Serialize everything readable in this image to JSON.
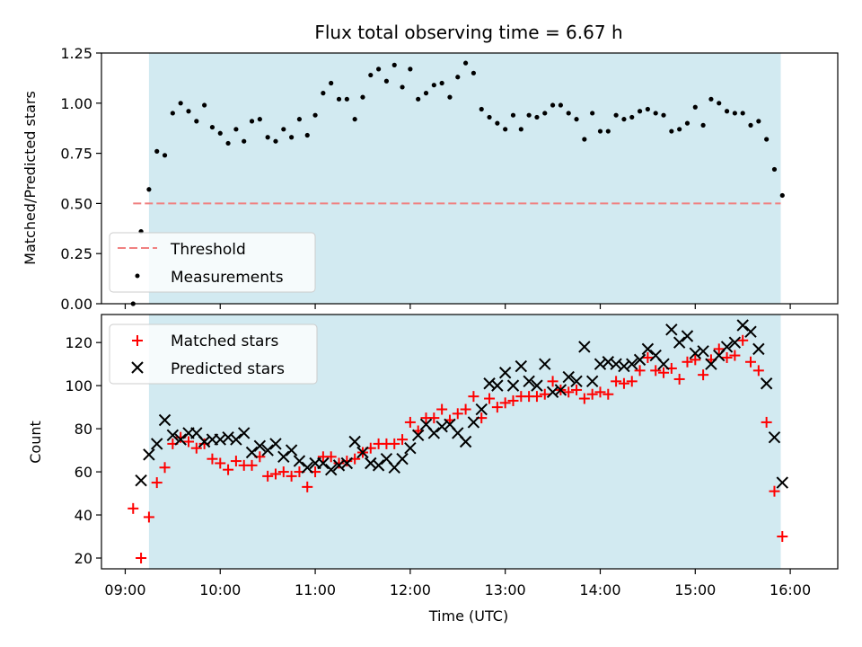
{
  "chart_data": [
    {
      "type": "scatter",
      "panel": "top",
      "title": "Flux total observing time = 6.67 h",
      "ylabel": "Matched/Predicted stars",
      "xlabel": "",
      "ylim": [
        0,
        1.25
      ],
      "yticks": [
        "0.00",
        "0.25",
        "0.50",
        "0.75",
        "1.00",
        "1.25"
      ],
      "ytick_values": [
        0,
        0.25,
        0.5,
        0.75,
        1.0,
        1.25
      ],
      "observing_window": {
        "start": "09:15",
        "end": "15:54",
        "color": "#add8e6"
      },
      "threshold": {
        "name": "Threshold",
        "value": 0.5,
        "x_start": "09:05",
        "x_end": "15:54",
        "color": "#f08080"
      },
      "legend": {
        "position": "lower-left",
        "entries": [
          "Threshold",
          "Measurements"
        ]
      },
      "series": [
        {
          "name": "Measurements",
          "marker": "dot",
          "color": "#000000",
          "points": [
            [
              "09:05",
              0.0
            ],
            [
              "09:10",
              0.36
            ],
            [
              "09:15",
              0.57
            ],
            [
              "09:20",
              0.76
            ],
            [
              "09:25",
              0.74
            ],
            [
              "09:30",
              0.95
            ],
            [
              "09:35",
              1.0
            ],
            [
              "09:40",
              0.96
            ],
            [
              "09:45",
              0.91
            ],
            [
              "09:50",
              0.99
            ],
            [
              "09:55",
              0.88
            ],
            [
              "10:00",
              0.85
            ],
            [
              "10:05",
              0.8
            ],
            [
              "10:10",
              0.87
            ],
            [
              "10:15",
              0.81
            ],
            [
              "10:20",
              0.91
            ],
            [
              "10:25",
              0.92
            ],
            [
              "10:30",
              0.83
            ],
            [
              "10:35",
              0.81
            ],
            [
              "10:40",
              0.87
            ],
            [
              "10:45",
              0.83
            ],
            [
              "10:50",
              0.92
            ],
            [
              "10:55",
              0.84
            ],
            [
              "11:00",
              0.94
            ],
            [
              "11:05",
              1.05
            ],
            [
              "11:10",
              1.1
            ],
            [
              "11:15",
              1.02
            ],
            [
              "11:20",
              1.02
            ],
            [
              "11:25",
              0.92
            ],
            [
              "11:30",
              1.03
            ],
            [
              "11:35",
              1.14
            ],
            [
              "11:40",
              1.17
            ],
            [
              "11:45",
              1.11
            ],
            [
              "11:50",
              1.19
            ],
            [
              "11:55",
              1.08
            ],
            [
              "12:00",
              1.17
            ],
            [
              "12:05",
              1.02
            ],
            [
              "12:10",
              1.05
            ],
            [
              "12:15",
              1.09
            ],
            [
              "12:20",
              1.1
            ],
            [
              "12:25",
              1.03
            ],
            [
              "12:30",
              1.13
            ],
            [
              "12:35",
              1.2
            ],
            [
              "12:40",
              1.15
            ],
            [
              "12:45",
              0.97
            ],
            [
              "12:50",
              0.93
            ],
            [
              "12:55",
              0.9
            ],
            [
              "13:00",
              0.87
            ],
            [
              "13:05",
              0.94
            ],
            [
              "13:10",
              0.87
            ],
            [
              "13:15",
              0.94
            ],
            [
              "13:20",
              0.93
            ],
            [
              "13:25",
              0.95
            ],
            [
              "13:30",
              0.99
            ],
            [
              "13:35",
              0.99
            ],
            [
              "13:40",
              0.95
            ],
            [
              "13:45",
              0.92
            ],
            [
              "13:50",
              0.82
            ],
            [
              "13:55",
              0.95
            ],
            [
              "14:00",
              0.86
            ],
            [
              "14:05",
              0.86
            ],
            [
              "14:10",
              0.94
            ],
            [
              "14:15",
              0.92
            ],
            [
              "14:20",
              0.93
            ],
            [
              "14:25",
              0.96
            ],
            [
              "14:30",
              0.97
            ],
            [
              "14:35",
              0.95
            ],
            [
              "14:40",
              0.94
            ],
            [
              "14:45",
              0.86
            ],
            [
              "14:50",
              0.87
            ],
            [
              "14:55",
              0.9
            ],
            [
              "15:00",
              0.98
            ],
            [
              "15:05",
              0.89
            ],
            [
              "15:10",
              1.02
            ],
            [
              "15:15",
              1.0
            ],
            [
              "15:20",
              0.96
            ],
            [
              "15:25",
              0.95
            ],
            [
              "15:30",
              0.95
            ],
            [
              "15:35",
              0.89
            ],
            [
              "15:40",
              0.91
            ],
            [
              "15:45",
              0.82
            ],
            [
              "15:50",
              0.67
            ],
            [
              "15:55",
              0.54
            ]
          ]
        }
      ]
    },
    {
      "type": "scatter",
      "panel": "bottom",
      "title": "",
      "ylabel": "Count",
      "xlabel": "Time (UTC)",
      "ylim": [
        15,
        133
      ],
      "yticks": [
        "20",
        "40",
        "60",
        "80",
        "100",
        "120"
      ],
      "ytick_values": [
        20,
        40,
        60,
        80,
        100,
        120
      ],
      "xlim": [
        "08:45",
        "16:30"
      ],
      "xticks": [
        "09:00",
        "10:00",
        "11:00",
        "12:00",
        "13:00",
        "14:00",
        "15:00",
        "16:00"
      ],
      "observing_window": {
        "start": "09:15",
        "end": "15:54",
        "color": "#add8e6"
      },
      "legend": {
        "position": "top-left",
        "entries": [
          "Matched stars",
          "Predicted stars"
        ]
      },
      "series": [
        {
          "name": "Matched stars",
          "marker": "plus",
          "color": "#ff0000",
          "points": [
            [
              "09:05",
              43
            ],
            [
              "09:10",
              20
            ],
            [
              "09:15",
              39
            ],
            [
              "09:20",
              55
            ],
            [
              "09:25",
              62
            ],
            [
              "09:30",
              73
            ],
            [
              "09:35",
              76
            ],
            [
              "09:40",
              74
            ],
            [
              "09:45",
              71
            ],
            [
              "09:50",
              73
            ],
            [
              "09:55",
              66
            ],
            [
              "10:00",
              64
            ],
            [
              "10:05",
              61
            ],
            [
              "10:10",
              65
            ],
            [
              "10:15",
              63
            ],
            [
              "10:20",
              63
            ],
            [
              "10:25",
              67
            ],
            [
              "10:30",
              58
            ],
            [
              "10:35",
              59
            ],
            [
              "10:40",
              60
            ],
            [
              "10:45",
              58
            ],
            [
              "10:50",
              60
            ],
            [
              "10:55",
              53
            ],
            [
              "11:00",
              60
            ],
            [
              "11:05",
              67
            ],
            [
              "11:10",
              67
            ],
            [
              "11:15",
              64
            ],
            [
              "11:20",
              65
            ],
            [
              "11:25",
              66
            ],
            [
              "11:30",
              69
            ],
            [
              "11:35",
              71
            ],
            [
              "11:40",
              73
            ],
            [
              "11:45",
              73
            ],
            [
              "11:50",
              73
            ],
            [
              "11:55",
              75
            ],
            [
              "12:00",
              83
            ],
            [
              "12:05",
              79
            ],
            [
              "12:10",
              85
            ],
            [
              "12:15",
              85
            ],
            [
              "12:20",
              89
            ],
            [
              "12:25",
              84
            ],
            [
              "12:30",
              87
            ],
            [
              "12:35",
              89
            ],
            [
              "12:40",
              95
            ],
            [
              "12:45",
              85
            ],
            [
              "12:50",
              94
            ],
            [
              "12:55",
              90
            ],
            [
              "13:00",
              92
            ],
            [
              "13:05",
              93
            ],
            [
              "13:10",
              95
            ],
            [
              "13:15",
              95
            ],
            [
              "13:20",
              95
            ],
            [
              "13:25",
              96
            ],
            [
              "13:30",
              102
            ],
            [
              "13:35",
              98
            ],
            [
              "13:40",
              97
            ],
            [
              "13:45",
              98
            ],
            [
              "13:50",
              94
            ],
            [
              "13:55",
              96
            ],
            [
              "14:00",
              97
            ],
            [
              "14:05",
              96
            ],
            [
              "14:10",
              102
            ],
            [
              "14:15",
              101
            ],
            [
              "14:20",
              102
            ],
            [
              "14:25",
              107
            ],
            [
              "14:30",
              113
            ],
            [
              "14:35",
              107
            ],
            [
              "14:40",
              106
            ],
            [
              "14:45",
              108
            ],
            [
              "14:50",
              103
            ],
            [
              "14:55",
              111
            ],
            [
              "15:00",
              112
            ],
            [
              "15:05",
              105
            ],
            [
              "15:10",
              112
            ],
            [
              "15:15",
              117
            ],
            [
              "15:20",
              113
            ],
            [
              "15:25",
              114
            ],
            [
              "15:30",
              121
            ],
            [
              "15:35",
              111
            ],
            [
              "15:40",
              107
            ],
            [
              "15:45",
              83
            ],
            [
              "15:50",
              51
            ],
            [
              "15:55",
              30
            ]
          ]
        },
        {
          "name": "Predicted stars",
          "marker": "x",
          "color": "#000000",
          "points": [
            [
              "09:10",
              56
            ],
            [
              "09:15",
              68
            ],
            [
              "09:20",
              73
            ],
            [
              "09:25",
              84
            ],
            [
              "09:30",
              77
            ],
            [
              "09:35",
              75
            ],
            [
              "09:40",
              78
            ],
            [
              "09:45",
              78
            ],
            [
              "09:50",
              74
            ],
            [
              "09:55",
              75
            ],
            [
              "10:00",
              75
            ],
            [
              "10:05",
              76
            ],
            [
              "10:10",
              75
            ],
            [
              "10:15",
              78
            ],
            [
              "10:20",
              69
            ],
            [
              "10:25",
              72
            ],
            [
              "10:30",
              70
            ],
            [
              "10:35",
              73
            ],
            [
              "10:40",
              67
            ],
            [
              "10:45",
              70
            ],
            [
              "10:50",
              65
            ],
            [
              "10:55",
              62
            ],
            [
              "11:00",
              64
            ],
            [
              "11:05",
              64
            ],
            [
              "11:10",
              61
            ],
            [
              "11:15",
              63
            ],
            [
              "11:20",
              64
            ],
            [
              "11:25",
              74
            ],
            [
              "11:30",
              69
            ],
            [
              "11:35",
              64
            ],
            [
              "11:40",
              63
            ],
            [
              "11:45",
              66
            ],
            [
              "11:50",
              62
            ],
            [
              "11:55",
              66
            ],
            [
              "12:00",
              71
            ],
            [
              "12:05",
              77
            ],
            [
              "12:10",
              82
            ],
            [
              "12:15",
              78
            ],
            [
              "12:20",
              81
            ],
            [
              "12:25",
              82
            ],
            [
              "12:30",
              78
            ],
            [
              "12:35",
              74
            ],
            [
              "12:40",
              83
            ],
            [
              "12:45",
              89
            ],
            [
              "12:50",
              101
            ],
            [
              "12:55",
              100
            ],
            [
              "13:00",
              106
            ],
            [
              "13:05",
              100
            ],
            [
              "13:10",
              109
            ],
            [
              "13:15",
              102
            ],
            [
              "13:20",
              100
            ],
            [
              "13:25",
              110
            ],
            [
              "13:30",
              97
            ],
            [
              "13:35",
              98
            ],
            [
              "13:40",
              104
            ],
            [
              "13:45",
              102
            ],
            [
              "13:50",
              118
            ],
            [
              "13:55",
              102
            ],
            [
              "14:00",
              110
            ],
            [
              "14:05",
              111
            ],
            [
              "14:10",
              110
            ],
            [
              "14:15",
              109
            ],
            [
              "14:20",
              110
            ],
            [
              "14:25",
              112
            ],
            [
              "14:30",
              117
            ],
            [
              "14:35",
              114
            ],
            [
              "14:40",
              110
            ],
            [
              "14:45",
              126
            ],
            [
              "14:50",
              120
            ],
            [
              "14:55",
              123
            ],
            [
              "15:00",
              115
            ],
            [
              "15:05",
              116
            ],
            [
              "15:10",
              110
            ],
            [
              "15:15",
              114
            ],
            [
              "15:20",
              118
            ],
            [
              "15:25",
              120
            ],
            [
              "15:30",
              128
            ],
            [
              "15:35",
              125
            ],
            [
              "15:40",
              117
            ],
            [
              "15:45",
              101
            ],
            [
              "15:50",
              76
            ],
            [
              "15:55",
              55
            ]
          ]
        }
      ]
    }
  ]
}
